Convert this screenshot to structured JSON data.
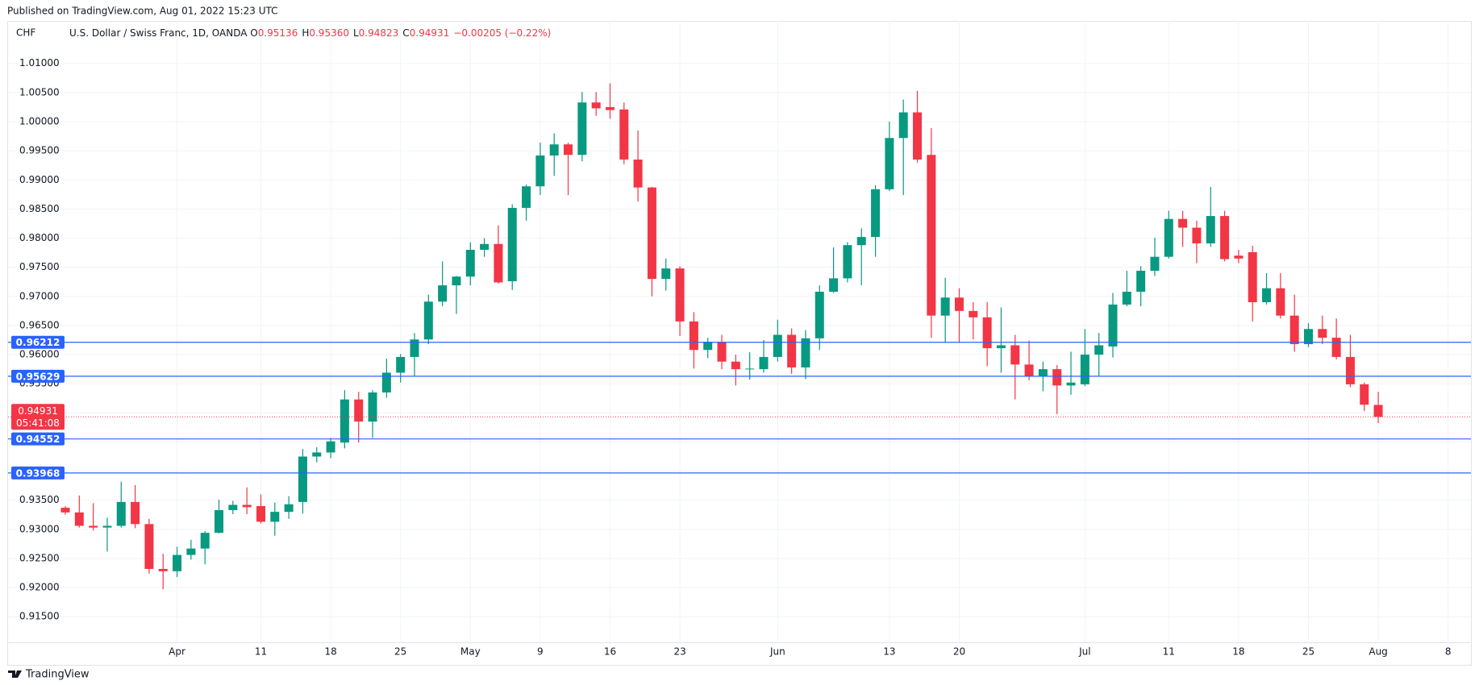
{
  "header": {
    "published": "Published on TradingView.com, Aug 01, 2022 15:23 UTC",
    "footer": "TradingView"
  },
  "chart_data": {
    "type": "candlestick",
    "symbol": "CHF",
    "title": "U.S. Dollar / Swiss Franc, 1D, OANDA",
    "legend_ohlc": [
      {
        "prefix": "O",
        "value": "0.95136"
      },
      {
        "prefix": "H",
        "value": "0.95360"
      },
      {
        "prefix": "L",
        "value": "0.94823"
      },
      {
        "prefix": "C",
        "value": "0.94931"
      }
    ],
    "change": "−0.00205 (−0.22%)",
    "up_color": "#089981",
    "down_color": "#f23645",
    "categories": [
      null,
      null,
      null,
      null,
      null,
      null,
      null,
      null,
      "Apr",
      null,
      null,
      null,
      null,
      null,
      "11",
      null,
      null,
      null,
      null,
      "18",
      null,
      null,
      null,
      null,
      "25",
      null,
      null,
      null,
      null,
      "May",
      null,
      null,
      null,
      null,
      "9",
      null,
      null,
      null,
      null,
      "16",
      null,
      null,
      null,
      null,
      "23",
      null,
      null,
      null,
      null,
      null,
      null,
      "Jun",
      null,
      null,
      null,
      null,
      null,
      null,
      null,
      "13",
      null,
      null,
      null,
      null,
      "20",
      null,
      null,
      null,
      null,
      null,
      null,
      null,
      null,
      "Jul",
      null,
      null,
      null,
      null,
      null,
      "11",
      null,
      null,
      null,
      null,
      "18",
      null,
      null,
      null,
      null,
      "25",
      null,
      null,
      null,
      null,
      "Aug",
      null,
      null,
      null,
      null,
      "8"
    ],
    "open": [
      0.9337,
      0.9329,
      0.9306,
      0.9303,
      0.9306,
      0.9347,
      0.9309,
      0.9232,
      0.9228,
      0.9256,
      0.9267,
      0.9294,
      0.9333,
      0.9342,
      0.934,
      0.9313,
      0.933,
      0.9347,
      0.9425,
      0.9432,
      0.9449,
      0.9523,
      0.9485,
      0.9535,
      0.9569,
      0.9596,
      0.9626,
      0.9691,
      0.9719,
      0.9734,
      0.978,
      0.979,
      0.9726,
      0.9852,
      0.9889,
      0.9942,
      0.9961,
      0.9943,
      1.0033,
      1.0025,
      1.0021,
      0.9935,
      0.9887,
      0.973,
      0.9748,
      0.9657,
      0.9608,
      0.9622,
      0.9588,
      0.9575,
      0.9575,
      0.9596,
      0.9634,
      0.9578,
      0.9628,
      0.9708,
      0.9731,
      0.9788,
      0.9802,
      0.9884,
      0.9972,
      1.0016,
      0.9943,
      0.9667,
      0.9698,
      0.9675,
      0.9664,
      0.9611,
      0.9616,
      0.9583,
      0.9563,
      0.9575,
      0.9547,
      0.9549,
      0.96,
      0.9614,
      0.9686,
      0.9708,
      0.9744,
      0.9768,
      0.9833,
      0.9818,
      0.9791,
      0.9838,
      0.977,
      0.9776,
      0.969,
      0.9714,
      0.9667,
      0.9618,
      0.9644,
      0.9629,
      0.9596,
      0.9549,
      0.95136,
      null,
      null,
      null,
      null,
      null
    ],
    "high": [
      0.934,
      0.9358,
      0.9345,
      0.932,
      0.9382,
      0.9376,
      0.9318,
      0.9258,
      0.927,
      0.9282,
      0.9297,
      0.9351,
      0.9349,
      0.9372,
      0.936,
      0.9346,
      0.9357,
      0.9438,
      0.9441,
      0.9457,
      0.9539,
      0.9536,
      0.9539,
      0.9593,
      0.9601,
      0.9637,
      0.9703,
      0.976,
      0.9735,
      0.9793,
      0.98,
      0.9822,
      0.9858,
      0.9892,
      0.9964,
      0.998,
      0.9964,
      1.0051,
      1.0051,
      1.0066,
      1.0033,
      0.9985,
      0.9888,
      0.9765,
      0.9752,
      0.9673,
      0.9629,
      0.9634,
      0.96,
      0.9604,
      0.9625,
      0.966,
      0.9645,
      0.9642,
      0.9719,
      0.9784,
      0.9793,
      0.9817,
      0.9891,
      1.0,
      1.0038,
      1.0053,
      0.9989,
      0.9732,
      0.9714,
      0.969,
      0.969,
      0.9681,
      0.9634,
      0.9624,
      0.9588,
      0.9582,
      0.9605,
      0.9644,
      0.9637,
      0.9706,
      0.9744,
      0.9752,
      0.9801,
      0.9847,
      0.9847,
      0.983,
      0.9888,
      0.9847,
      0.978,
      0.9787,
      0.974,
      0.974,
      0.9703,
      0.9654,
      0.9667,
      0.9662,
      0.9634,
      0.9552,
      0.9536,
      null,
      null,
      null,
      null,
      null
    ],
    "low": [
      0.9325,
      0.9303,
      0.9298,
      0.9262,
      0.9303,
      0.9302,
      0.9224,
      0.9197,
      0.9218,
      0.9248,
      0.924,
      0.9293,
      0.9326,
      0.9326,
      0.931,
      0.9289,
      0.9318,
      0.9327,
      0.9415,
      0.9422,
      0.9439,
      0.9449,
      0.9457,
      0.9526,
      0.9552,
      0.9562,
      0.9618,
      0.9683,
      0.967,
      0.9719,
      0.9768,
      0.9722,
      0.9711,
      0.983,
      0.9874,
      0.9907,
      0.9874,
      0.9932,
      1.001,
      1.0005,
      0.9927,
      0.9863,
      0.97,
      0.971,
      0.9632,
      0.9576,
      0.9594,
      0.9575,
      0.9547,
      0.9557,
      0.9569,
      0.9588,
      0.9567,
      0.9558,
      0.9608,
      0.9706,
      0.9724,
      0.9719,
      0.9768,
      0.9881,
      0.9874,
      0.993,
      0.9629,
      0.962,
      0.962,
      0.9626,
      0.958,
      0.9569,
      0.9523,
      0.9556,
      0.9537,
      0.9498,
      0.9531,
      0.9546,
      0.9563,
      0.9595,
      0.9683,
      0.9683,
      0.9735,
      0.9765,
      0.9785,
      0.9757,
      0.9785,
      0.976,
      0.9757,
      0.9657,
      0.9686,
      0.9662,
      0.9605,
      0.9613,
      0.9618,
      0.9592,
      0.9544,
      0.9503,
      0.94823,
      null,
      null,
      null,
      null,
      null
    ],
    "close": [
      0.9329,
      0.9306,
      0.9303,
      0.9306,
      0.9347,
      0.9309,
      0.9232,
      0.9228,
      0.9256,
      0.9267,
      0.9294,
      0.9333,
      0.9342,
      0.9338,
      0.9313,
      0.933,
      0.9343,
      0.9425,
      0.9432,
      0.9451,
      0.9523,
      0.9485,
      0.9535,
      0.9569,
      0.9596,
      0.9626,
      0.9691,
      0.9719,
      0.9734,
      0.978,
      0.979,
      0.9724,
      0.9852,
      0.9889,
      0.9942,
      0.9961,
      0.9943,
      1.0033,
      1.0023,
      1.002,
      0.9935,
      0.9887,
      0.973,
      0.9748,
      0.9657,
      0.9608,
      0.9622,
      0.9588,
      0.9575,
      0.9576,
      0.9596,
      0.9634,
      0.9578,
      0.9628,
      0.9708,
      0.9731,
      0.9788,
      0.9802,
      0.9884,
      0.9972,
      1.0016,
      0.9935,
      0.9667,
      0.9698,
      0.9675,
      0.9664,
      0.9611,
      0.9616,
      0.9583,
      0.9563,
      0.9575,
      0.9547,
      0.9552,
      0.96,
      0.9616,
      0.9686,
      0.9708,
      0.9744,
      0.9768,
      0.9833,
      0.9818,
      0.9791,
      0.9838,
      0.9764,
      0.9765,
      0.969,
      0.9714,
      0.9667,
      0.9618,
      0.9644,
      0.9629,
      0.9596,
      0.9549,
      0.9514,
      0.94931,
      null,
      null,
      null,
      null,
      null
    ],
    "ylim": [
      0.9106,
      1.0173
    ],
    "yticks": [
      {
        "value": 1.01,
        "label": "1.01000"
      },
      {
        "value": 1.005,
        "label": "1.00500"
      },
      {
        "value": 1.0,
        "label": "1.00000"
      },
      {
        "value": 0.995,
        "label": "0.99500"
      },
      {
        "value": 0.99,
        "label": "0.99000"
      },
      {
        "value": 0.985,
        "label": "0.98500"
      },
      {
        "value": 0.98,
        "label": "0.98000"
      },
      {
        "value": 0.975,
        "label": "0.97500"
      },
      {
        "value": 0.97,
        "label": "0.97000"
      },
      {
        "value": 0.965,
        "label": "0.96500"
      },
      {
        "value": 0.96,
        "label": "0.96000"
      },
      {
        "value": 0.955,
        "label": "0.95500"
      },
      {
        "value": 0.95,
        "label": "0.95000"
      },
      {
        "value": 0.945,
        "label": "0.94500"
      },
      {
        "value": 0.94,
        "label": "0.94000"
      },
      {
        "value": 0.935,
        "label": "0.93500"
      },
      {
        "value": 0.93,
        "label": "0.93000"
      },
      {
        "value": 0.925,
        "label": "0.92500"
      },
      {
        "value": 0.92,
        "label": "0.92000"
      },
      {
        "value": 0.915,
        "label": "0.91500"
      }
    ],
    "grid": true,
    "horizontal_lines": [
      {
        "value": 0.96212,
        "color": "#2962ff"
      },
      {
        "value": 0.95629,
        "color": "#2962ff"
      },
      {
        "value": 0.94552,
        "color": "#2962ff"
      },
      {
        "value": 0.93968,
        "color": "#2962ff"
      }
    ],
    "last_price": {
      "value": 0.94931,
      "countdown": "05:41:08",
      "color": "#f23645"
    }
  }
}
